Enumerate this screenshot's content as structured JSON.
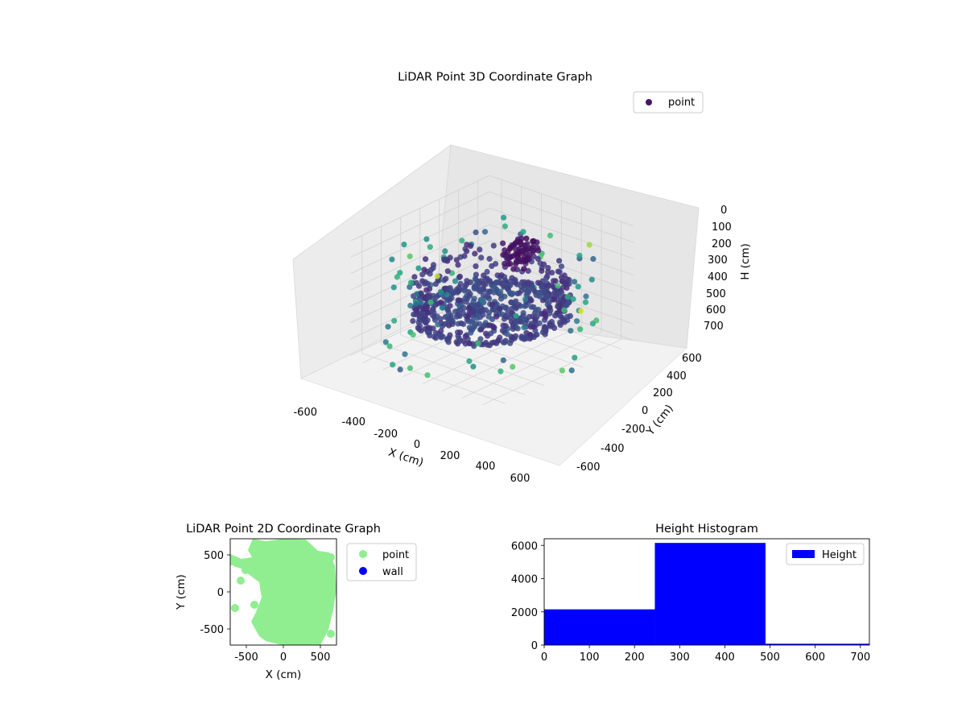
{
  "chart_data": [
    {
      "type": "scatter3d",
      "title": "LiDAR Point 3D Coordinate Graph",
      "xlabel": "X (cm)",
      "ylabel": "Y (cm)",
      "zlabel": "H (cm)",
      "xticks": [
        "-600",
        "-400",
        "-200",
        "0",
        "200",
        "400",
        "600"
      ],
      "yticks": [
        "-600",
        "-400",
        "-200",
        "0",
        "200",
        "400",
        "600"
      ],
      "zticks": [
        "0",
        "100",
        "200",
        "300",
        "400",
        "500",
        "600",
        "700"
      ],
      "xlim": [
        -720,
        720
      ],
      "ylim": [
        -720,
        720
      ],
      "zlim": [
        720,
        0
      ],
      "z_inverted": true,
      "grid": true,
      "colormap": "viridis",
      "legend": {
        "position": "top-right",
        "entries": [
          {
            "name": "point",
            "color": "#46166b"
          }
        ]
      },
      "series": [
        {
          "name": "point",
          "description_of_shape": "dense ring of points (radius ~500-600 cm) at heights 250-490 cm with a lower arc at ~450 cm, plus sparse outliers",
          "approx_count": 8400
        }
      ]
    },
    {
      "type": "scatter",
      "title": "LiDAR Point 2D Coordinate Graph",
      "xlabel": "X (cm)",
      "ylabel": "Y (cm)",
      "xticks": [
        "-500",
        "0",
        "500"
      ],
      "yticks": [
        "-500",
        "0",
        "500"
      ],
      "xlim": [
        -720,
        720
      ],
      "ylim": [
        -720,
        720
      ],
      "legend": {
        "position": "outside-right",
        "entries": [
          {
            "name": "point",
            "color": "#90ee90"
          },
          {
            "name": "wall",
            "color": "#0000ff"
          }
        ]
      }
    },
    {
      "type": "bar",
      "title": "Height Histogram",
      "xticks": [
        "0",
        "100",
        "200",
        "300",
        "400",
        "500",
        "600",
        "700"
      ],
      "yticks": [
        "0",
        "2000",
        "4000",
        "6000"
      ],
      "xlim": [
        0,
        720
      ],
      "ylim": [
        0,
        6400
      ],
      "bins": [
        {
          "start": 0,
          "end": 245,
          "count": 2150
        },
        {
          "start": 245,
          "end": 490,
          "count": 6150
        },
        {
          "start": 490,
          "end": 720,
          "count": 80
        }
      ],
      "color": "#0000ff",
      "legend": {
        "position": "top-right",
        "entries": [
          {
            "name": "Height",
            "color": "#0000ff"
          }
        ]
      }
    }
  ]
}
